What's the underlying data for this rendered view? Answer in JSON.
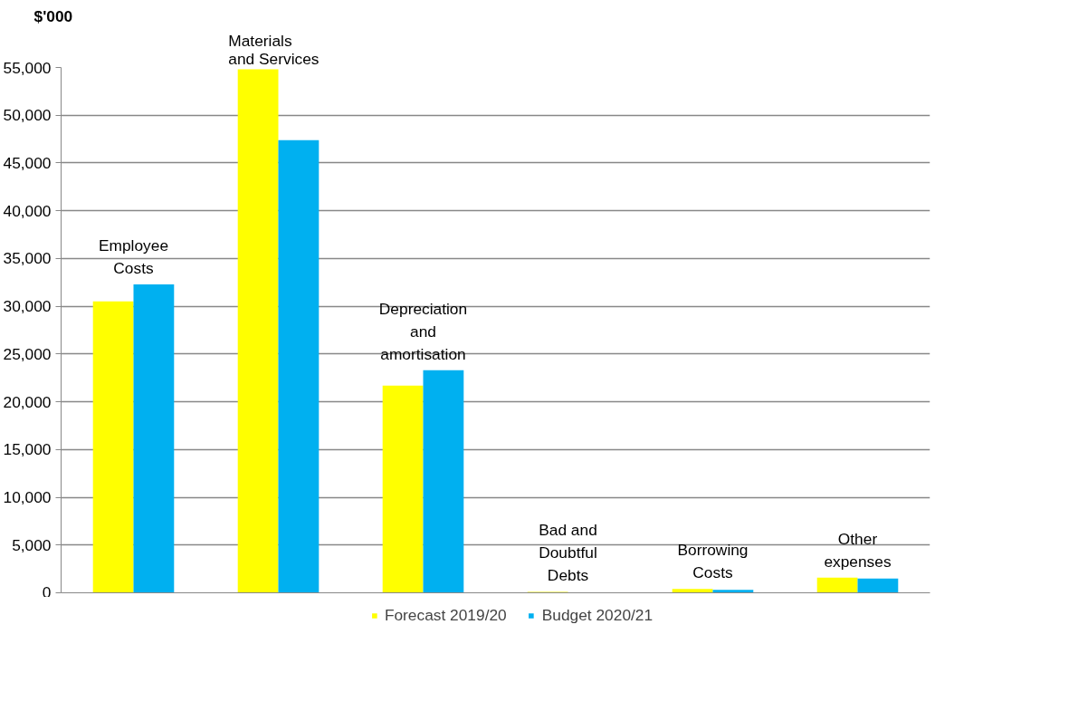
{
  "chart_data": {
    "type": "bar",
    "ylabel": "$'000",
    "categories": [
      "Employee Costs",
      "Materials and Services",
      "Depreciation and amortisation",
      "Bad and Doubtful Debts",
      "Borrowing Costs",
      "Other expenses"
    ],
    "series": [
      {
        "name": "Forecast 2019/20",
        "color": "#ffff00",
        "values": [
          30500,
          54800,
          21700,
          100,
          400,
          1600
        ]
      },
      {
        "name": "Budget 2020/21",
        "color": "#00b0f0",
        "values": [
          32300,
          47400,
          23300,
          0,
          300,
          1500
        ]
      }
    ],
    "ylim": [
      0,
      55000
    ],
    "yticks": [
      {
        "value": 0,
        "label": "0"
      },
      {
        "value": 5000,
        "label": "5,000"
      },
      {
        "value": 10000,
        "label": "10,000"
      },
      {
        "value": 15000,
        "label": "15,000"
      },
      {
        "value": 20000,
        "label": "20,000"
      },
      {
        "value": 25000,
        "label": "25,000"
      },
      {
        "value": 30000,
        "label": "30,000"
      },
      {
        "value": 35000,
        "label": "35,000"
      },
      {
        "value": 40000,
        "label": "40,000"
      },
      {
        "value": 45000,
        "label": "45,000"
      },
      {
        "value": 50000,
        "label": "50,000"
      },
      {
        "value": 55000,
        "label": "55,000"
      }
    ],
    "grid": "y",
    "legend": "bottom",
    "tick_labels": "y"
  }
}
